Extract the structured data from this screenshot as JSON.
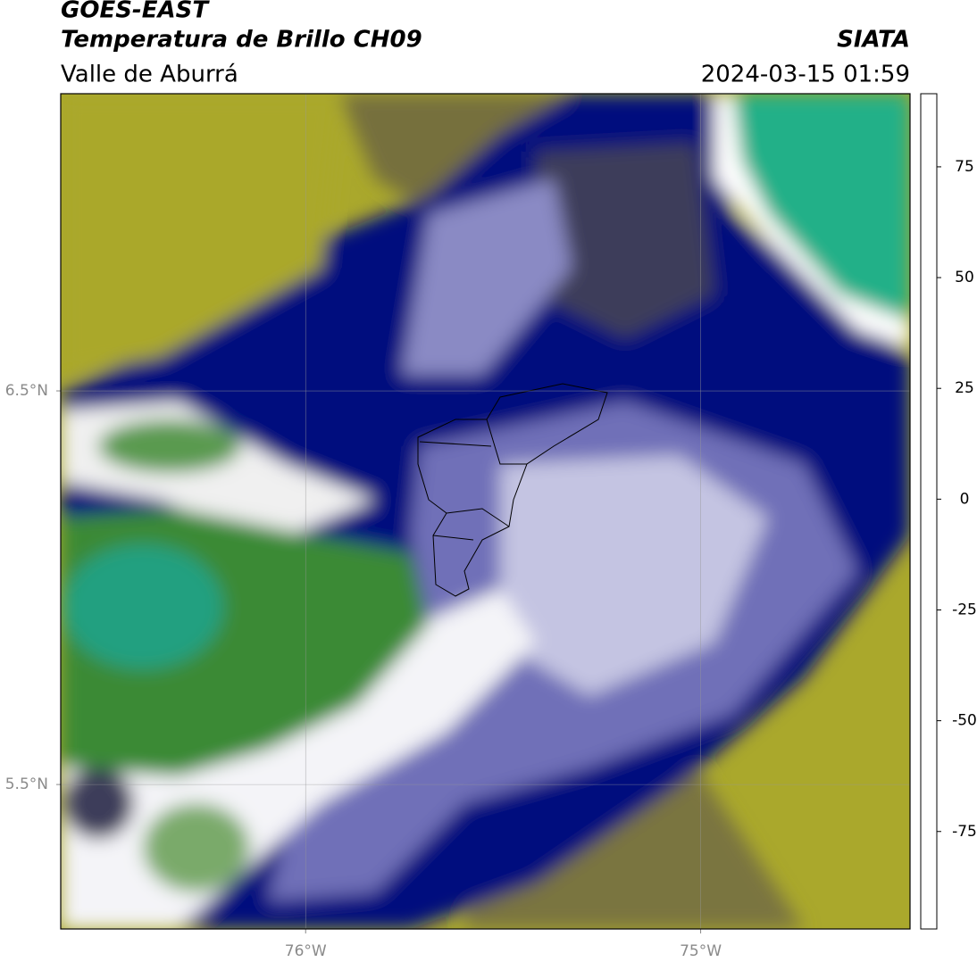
{
  "header": {
    "title": "GOES-EAST",
    "subtitle": "Temperatura de Brillo CH09",
    "region": "Valle de Aburrá",
    "source": "SIATA",
    "timestamp": "2024-03-15 01:59"
  },
  "map": {
    "xlim": [
      -76.62,
      -74.47
    ],
    "ylim": [
      5.133,
      7.255
    ],
    "xticks": [
      {
        "value": -76,
        "label": "76°W"
      },
      {
        "value": -75,
        "label": "75°W"
      }
    ],
    "yticks": [
      {
        "value": 6.5,
        "label": "6.5°N"
      },
      {
        "value": 5.5,
        "label": "5.5°N"
      }
    ],
    "grid": true
  },
  "colorbar": {
    "lim": [
      -97,
      91.5
    ],
    "ticks": [
      -75,
      -50,
      -25,
      0,
      25,
      50,
      75
    ],
    "colormap": [
      {
        "value": -97,
        "color": "#ffffff"
      },
      {
        "value": -92,
        "color": "#ffffff"
      },
      {
        "value": -92,
        "color": "#00e8d8"
      },
      {
        "value": -80,
        "color": "#22a888"
      },
      {
        "value": -65,
        "color": "#3a8a30"
      },
      {
        "value": -57,
        "color": "#9cc090"
      },
      {
        "value": -50,
        "color": "#ffffff"
      },
      {
        "value": -42,
        "color": "#a8a8d4"
      },
      {
        "value": -34,
        "color": "#4a4a9c"
      },
      {
        "value": -28,
        "color": "#000080"
      },
      {
        "value": -24,
        "color": "#4a4a4a"
      },
      {
        "value": -20,
        "color": "#9a9a30"
      },
      {
        "value": -14,
        "color": "#ffff00"
      },
      {
        "value": -4,
        "color": "#ff9000"
      },
      {
        "value": 8,
        "color": "#ff0000"
      },
      {
        "value": 8,
        "color": "#000000"
      },
      {
        "value": 91.5,
        "color": "#000000"
      }
    ]
  }
}
